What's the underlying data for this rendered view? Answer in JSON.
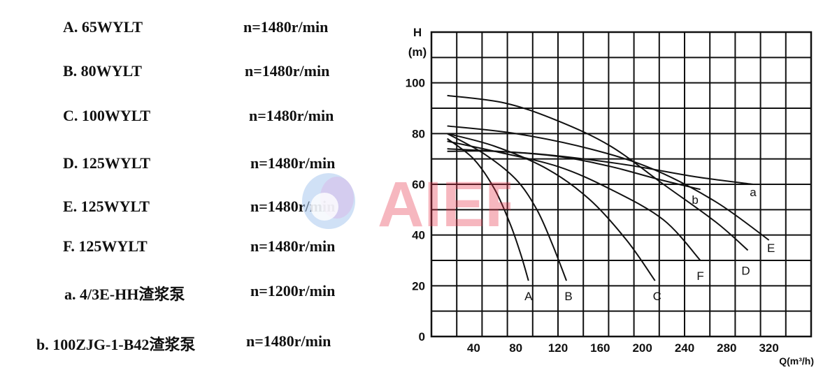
{
  "legend": [
    {
      "name": "A. 65WYLT",
      "speed": "n=1480r/min"
    },
    {
      "name": "B. 80WYLT",
      "speed": "n=1480r/min"
    },
    {
      "name": "C. 100WYLT",
      "speed": "n=1480r/min"
    },
    {
      "name": "D. 125WYLT",
      "speed": "n=1480r/min"
    },
    {
      "name": "E. 125WYLT",
      "speed": "n=1480r/min"
    },
    {
      "name": "F. 125WYLT",
      "speed": "n=1480r/min"
    },
    {
      "name": "a. 4/3E-HH渣浆泵",
      "speed": "n=1200r/min"
    },
    {
      "name": "b. 100ZJG-1-B42渣浆泵",
      "speed": "n=1480r/min"
    }
  ],
  "watermark": {
    "text": "AIER",
    "color": "#e8334a"
  },
  "chart_data": {
    "type": "line",
    "title": "",
    "xlabel": "Q(m³/h)",
    "ylabel": "H",
    "ylabel_unit": "(m)",
    "xlim": [
      0,
      360
    ],
    "ylim": [
      0,
      120
    ],
    "x_ticks": [
      40,
      80,
      120,
      160,
      200,
      240,
      280,
      320
    ],
    "y_ticks": [
      20,
      40,
      60,
      80,
      100
    ],
    "origin_label": "0",
    "grid": true,
    "series": [
      {
        "name": "A",
        "points": [
          [
            15,
            78
          ],
          [
            40,
            70
          ],
          [
            60,
            58
          ],
          [
            75,
            44
          ],
          [
            85,
            32
          ],
          [
            92,
            22
          ]
        ]
      },
      {
        "name": "B",
        "points": [
          [
            15,
            80
          ],
          [
            50,
            72
          ],
          [
            80,
            62
          ],
          [
            100,
            50
          ],
          [
            115,
            36
          ],
          [
            128,
            22
          ]
        ]
      },
      {
        "name": "C",
        "points": [
          [
            15,
            80
          ],
          [
            60,
            75
          ],
          [
            110,
            66
          ],
          [
            150,
            54
          ],
          [
            185,
            38
          ],
          [
            212,
            22
          ]
        ]
      },
      {
        "name": "F",
        "points": [
          [
            15,
            77
          ],
          [
            60,
            73
          ],
          [
            120,
            67
          ],
          [
            170,
            58
          ],
          [
            220,
            46
          ],
          [
            255,
            30
          ]
        ]
      },
      {
        "name": "D",
        "points": [
          [
            15,
            95
          ],
          [
            70,
            92
          ],
          [
            120,
            85
          ],
          [
            170,
            75
          ],
          [
            220,
            60
          ],
          [
            270,
            45
          ],
          [
            300,
            34
          ]
        ]
      },
      {
        "name": "E",
        "points": [
          [
            15,
            83
          ],
          [
            80,
            80
          ],
          [
            150,
            74
          ],
          [
            210,
            66
          ],
          [
            270,
            53
          ],
          [
            320,
            38
          ]
        ]
      },
      {
        "name": "b",
        "points": [
          [
            15,
            73
          ],
          [
            60,
            73
          ],
          [
            120,
            71
          ],
          [
            170,
            67
          ],
          [
            215,
            62
          ],
          [
            255,
            58
          ]
        ]
      },
      {
        "name": "a",
        "points": [
          [
            15,
            74
          ],
          [
            100,
            72
          ],
          [
            180,
            68
          ],
          [
            250,
            63
          ],
          [
            305,
            60
          ]
        ]
      }
    ],
    "curve_labels": [
      {
        "text": "A",
        "x": 92,
        "y": 16
      },
      {
        "text": "B",
        "x": 130,
        "y": 16
      },
      {
        "text": "C",
        "x": 214,
        "y": 16
      },
      {
        "text": "F",
        "x": 255,
        "y": 24
      },
      {
        "text": "D",
        "x": 298,
        "y": 26
      },
      {
        "text": "E",
        "x": 322,
        "y": 35
      },
      {
        "text": "b",
        "x": 250,
        "y": 54
      },
      {
        "text": "a",
        "x": 305,
        "y": 57
      }
    ]
  }
}
